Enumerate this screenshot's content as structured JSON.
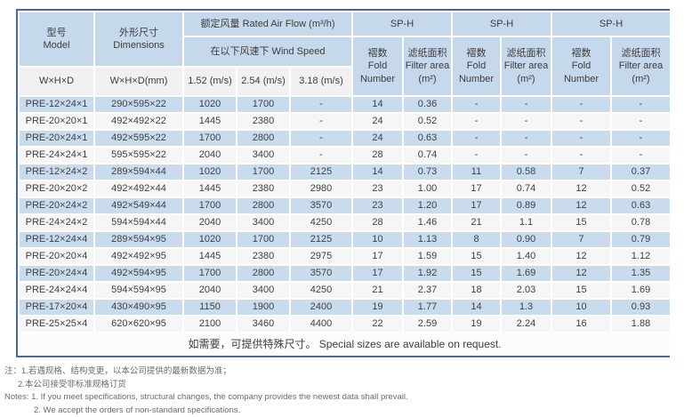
{
  "colors": {
    "border": "#46689e",
    "header_bg": "#c6d9ec",
    "subheader_bg": "#f1f1f1",
    "row_blue": "#c9dcee",
    "row_light": "#f6f6f6"
  },
  "table": {
    "header": {
      "model": "型号\nModel",
      "model_sub": "W×H×D",
      "dimensions": "外形尺寸\nDimensions",
      "dimensions_sub": "W×H×D(mm)",
      "airflow_title": "额定风量 Rated Air Flow (m³/h)",
      "windspeed_title": "在以下风速下 Wind Speed",
      "speeds": [
        "1.52 (m/s)",
        "2.54 (m/s)",
        "3.18 (m/s)"
      ],
      "groups": [
        {
          "title": "SP-H",
          "fold": "褶数\nFold\nNumber",
          "area": "滤纸面积\nFilter area\n(m²)"
        },
        {
          "title": "SP-H",
          "fold": "褶数\nFold\nNumber",
          "area": "滤纸面积\nFilter area\n(m²)"
        },
        {
          "title": "SP-H",
          "fold": "褶数\nFold\nNumber",
          "area": "滤纸面积\nFilter area\n(m²)"
        }
      ]
    },
    "columns": [
      "model",
      "dimensions",
      "flow-1.52",
      "flow-2.54",
      "flow-3.18",
      "sp1-fold",
      "sp1-area",
      "sp2-fold",
      "sp2-area",
      "sp3-fold",
      "sp3-area"
    ],
    "rows": [
      [
        "PRE-12×24×1",
        "290×595×22",
        "1020",
        "1700",
        "-",
        "14",
        "0.36",
        "-",
        "-",
        "-",
        "-"
      ],
      [
        "PRE-20×20×1",
        "492×492×22",
        "1445",
        "2380",
        "-",
        "24",
        "0.52",
        "-",
        "-",
        "-",
        "-"
      ],
      [
        "PRE-20×24×1",
        "492×595×22",
        "1700",
        "2800",
        "-",
        "24",
        "0.63",
        "-",
        "-",
        "-",
        "-"
      ],
      [
        "PRE-24×24×1",
        "595×595×22",
        "2040",
        "3400",
        "-",
        "28",
        "0.74",
        "-",
        "-",
        "-",
        "-"
      ],
      [
        "PRE-12×24×2",
        "289×594×44",
        "1020",
        "1700",
        "2125",
        "14",
        "0.73",
        "11",
        "0.58",
        "7",
        "0.37"
      ],
      [
        "PRE-20×20×2",
        "492×492×44",
        "1445",
        "2380",
        "2980",
        "23",
        "1.00",
        "17",
        "0.74",
        "12",
        "0.52"
      ],
      [
        "PRE-20×24×2",
        "492×549×44",
        "1700",
        "2800",
        "3570",
        "23",
        "1.20",
        "17",
        "0.89",
        "12",
        "0.63"
      ],
      [
        "PRE-24×24×2",
        "594×594×44",
        "2040",
        "3400",
        "4250",
        "28",
        "1.46",
        "21",
        "1.1",
        "15",
        "0.78"
      ],
      [
        "PRE-12×24×4",
        "289×594×95",
        "1020",
        "1700",
        "2125",
        "10",
        "1.13",
        "8",
        "0.90",
        "7",
        "0.79"
      ],
      [
        "PRE-20×20×4",
        "492×492×95",
        "1445",
        "2380",
        "2975",
        "17",
        "1.59",
        "15",
        "1.40",
        "12",
        "1.12"
      ],
      [
        "PRE-20×24×4",
        "492×594×95",
        "1700",
        "2800",
        "3570",
        "17",
        "1.92",
        "15",
        "1.69",
        "12",
        "1.35"
      ],
      [
        "PRE-24×24×4",
        "594×594×95",
        "2040",
        "3400",
        "4250",
        "21",
        "2.37",
        "18",
        "2.03",
        "15",
        "1.69"
      ],
      [
        "PRE-17×20×4",
        "430×490×95",
        "1150",
        "1900",
        "2400",
        "19",
        "1.77",
        "14",
        "1.3",
        "10",
        "0.93"
      ],
      [
        "PRE-25×25×4",
        "620×620×95",
        "2100",
        "3460",
        "4400",
        "22",
        "2.59",
        "19",
        "2.24",
        "16",
        "1.88"
      ]
    ],
    "footer": "如需要，可提供特殊尺寸。 Special sizes are available on request."
  },
  "notes": {
    "zh1": "注：1.若遇规格、结构变更，以本公司提供的最新数据为准；",
    "zh2": "2.本公司接受非标准规格订货",
    "en1": "Notes:  1. If you meet specifications, structural changes, the company provides the newest data shall prevail.",
    "en2": "2. We accept the orders of non-standard specifications."
  }
}
